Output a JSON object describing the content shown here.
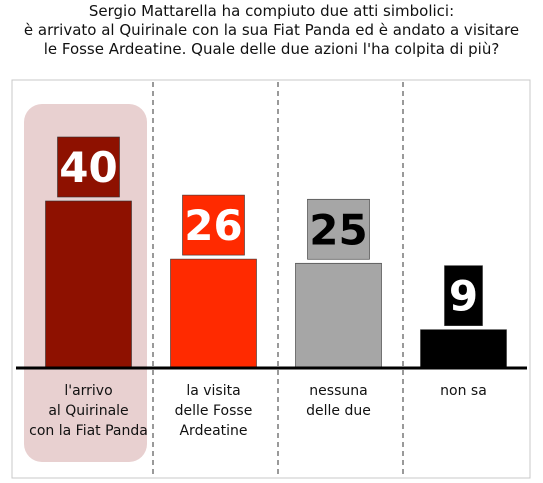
{
  "title_lines": [
    "Sergio Mattarella ha compiuto due atti simbolici:",
    "è arrivato al Quirinale con la sua Fiat Panda ed è andato a visitare",
    "le Fosse Ardeatine. Quale delle due azioni l'ha colpita di più?"
  ],
  "chart_data": {
    "type": "bar",
    "categories": [
      [
        "l'arrivo",
        "al Quirinale",
        "con la Fiat Panda"
      ],
      [
        "la visita",
        "delle Fosse",
        "Ardeatine"
      ],
      [
        "nessuna",
        "delle due"
      ],
      [
        "non sa"
      ]
    ],
    "values": [
      40,
      26,
      25,
      9
    ],
    "highlighted_category": 0,
    "colors": {
      "bars": [
        "#8e1100",
        "#ff2a00",
        "#a6a6a6",
        "#000000"
      ],
      "value_box_text": [
        "#ffffff",
        "#ffffff",
        "#000000",
        "#ffffff"
      ],
      "highlight_bg": "#e8d0d0",
      "divider": "#9a9a9a",
      "baseline": "#000000",
      "frame": "#c8c8c8"
    },
    "grid": false,
    "legend": "none"
  }
}
